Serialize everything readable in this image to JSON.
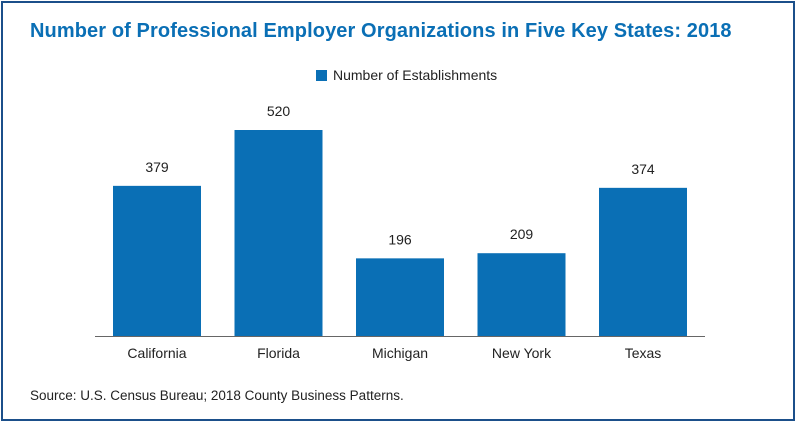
{
  "title": "Number of Professional Employer Organizations in Five Key States: 2018",
  "source": "Source: U.S. Census Bureau; 2018 County Business Patterns.",
  "colors": {
    "bar": "#0a6fb5",
    "title": "#0a6fb5",
    "border": "#1b4f8a",
    "axis": "#666666",
    "text": "#222222"
  },
  "chart_data": {
    "type": "bar",
    "title": "Number of Professional Employer Organizations in Five Key States: 2018",
    "categories": [
      "California",
      "Florida",
      "Michigan",
      "New York",
      "Texas"
    ],
    "series": [
      {
        "name": "Number of Establishments",
        "values": [
          379,
          520,
          196,
          209,
          374
        ],
        "color": "#0a6fb5"
      }
    ],
    "data_labels": [
      "379",
      "520",
      "196",
      "209",
      "374"
    ],
    "xlabel": "",
    "ylabel": "",
    "ylim": [
      0,
      593
    ],
    "grid": false,
    "legend": "top-center"
  }
}
